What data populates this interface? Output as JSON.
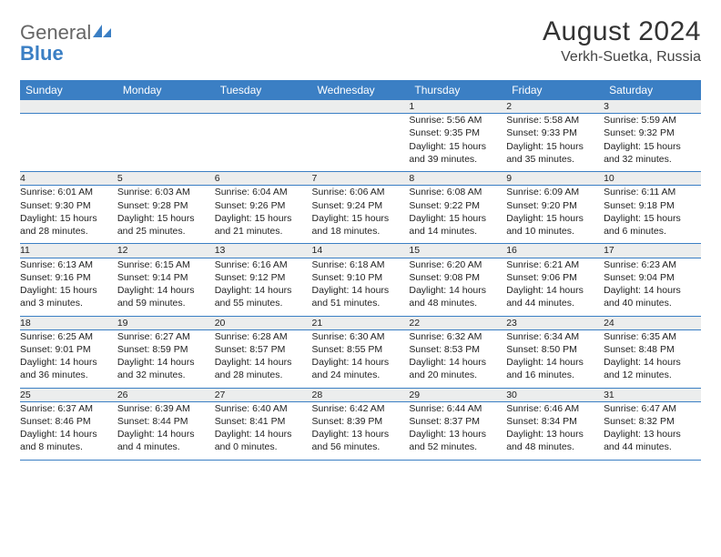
{
  "brand": {
    "part1": "General",
    "part2": "Blue"
  },
  "title": "August 2024",
  "location": "Verkh-Suetka, Russia",
  "colors": {
    "header_bg": "#3b7fc4",
    "header_fg": "#ffffff",
    "daynum_bg": "#eceded",
    "rule": "#3b7fc4",
    "text": "#222222",
    "brand_gray": "#666666",
    "brand_blue": "#3b7fc4"
  },
  "weekdays": [
    "Sunday",
    "Monday",
    "Tuesday",
    "Wednesday",
    "Thursday",
    "Friday",
    "Saturday"
  ],
  "weeks": [
    {
      "nums": [
        "",
        "",
        "",
        "",
        "1",
        "2",
        "3"
      ],
      "cells": [
        null,
        null,
        null,
        null,
        {
          "sunrise": "Sunrise: 5:56 AM",
          "sunset": "Sunset: 9:35 PM",
          "day1": "Daylight: 15 hours",
          "day2": "and 39 minutes."
        },
        {
          "sunrise": "Sunrise: 5:58 AM",
          "sunset": "Sunset: 9:33 PM",
          "day1": "Daylight: 15 hours",
          "day2": "and 35 minutes."
        },
        {
          "sunrise": "Sunrise: 5:59 AM",
          "sunset": "Sunset: 9:32 PM",
          "day1": "Daylight: 15 hours",
          "day2": "and 32 minutes."
        }
      ]
    },
    {
      "nums": [
        "4",
        "5",
        "6",
        "7",
        "8",
        "9",
        "10"
      ],
      "cells": [
        {
          "sunrise": "Sunrise: 6:01 AM",
          "sunset": "Sunset: 9:30 PM",
          "day1": "Daylight: 15 hours",
          "day2": "and 28 minutes."
        },
        {
          "sunrise": "Sunrise: 6:03 AM",
          "sunset": "Sunset: 9:28 PM",
          "day1": "Daylight: 15 hours",
          "day2": "and 25 minutes."
        },
        {
          "sunrise": "Sunrise: 6:04 AM",
          "sunset": "Sunset: 9:26 PM",
          "day1": "Daylight: 15 hours",
          "day2": "and 21 minutes."
        },
        {
          "sunrise": "Sunrise: 6:06 AM",
          "sunset": "Sunset: 9:24 PM",
          "day1": "Daylight: 15 hours",
          "day2": "and 18 minutes."
        },
        {
          "sunrise": "Sunrise: 6:08 AM",
          "sunset": "Sunset: 9:22 PM",
          "day1": "Daylight: 15 hours",
          "day2": "and 14 minutes."
        },
        {
          "sunrise": "Sunrise: 6:09 AM",
          "sunset": "Sunset: 9:20 PM",
          "day1": "Daylight: 15 hours",
          "day2": "and 10 minutes."
        },
        {
          "sunrise": "Sunrise: 6:11 AM",
          "sunset": "Sunset: 9:18 PM",
          "day1": "Daylight: 15 hours",
          "day2": "and 6 minutes."
        }
      ]
    },
    {
      "nums": [
        "11",
        "12",
        "13",
        "14",
        "15",
        "16",
        "17"
      ],
      "cells": [
        {
          "sunrise": "Sunrise: 6:13 AM",
          "sunset": "Sunset: 9:16 PM",
          "day1": "Daylight: 15 hours",
          "day2": "and 3 minutes."
        },
        {
          "sunrise": "Sunrise: 6:15 AM",
          "sunset": "Sunset: 9:14 PM",
          "day1": "Daylight: 14 hours",
          "day2": "and 59 minutes."
        },
        {
          "sunrise": "Sunrise: 6:16 AM",
          "sunset": "Sunset: 9:12 PM",
          "day1": "Daylight: 14 hours",
          "day2": "and 55 minutes."
        },
        {
          "sunrise": "Sunrise: 6:18 AM",
          "sunset": "Sunset: 9:10 PM",
          "day1": "Daylight: 14 hours",
          "day2": "and 51 minutes."
        },
        {
          "sunrise": "Sunrise: 6:20 AM",
          "sunset": "Sunset: 9:08 PM",
          "day1": "Daylight: 14 hours",
          "day2": "and 48 minutes."
        },
        {
          "sunrise": "Sunrise: 6:21 AM",
          "sunset": "Sunset: 9:06 PM",
          "day1": "Daylight: 14 hours",
          "day2": "and 44 minutes."
        },
        {
          "sunrise": "Sunrise: 6:23 AM",
          "sunset": "Sunset: 9:04 PM",
          "day1": "Daylight: 14 hours",
          "day2": "and 40 minutes."
        }
      ]
    },
    {
      "nums": [
        "18",
        "19",
        "20",
        "21",
        "22",
        "23",
        "24"
      ],
      "cells": [
        {
          "sunrise": "Sunrise: 6:25 AM",
          "sunset": "Sunset: 9:01 PM",
          "day1": "Daylight: 14 hours",
          "day2": "and 36 minutes."
        },
        {
          "sunrise": "Sunrise: 6:27 AM",
          "sunset": "Sunset: 8:59 PM",
          "day1": "Daylight: 14 hours",
          "day2": "and 32 minutes."
        },
        {
          "sunrise": "Sunrise: 6:28 AM",
          "sunset": "Sunset: 8:57 PM",
          "day1": "Daylight: 14 hours",
          "day2": "and 28 minutes."
        },
        {
          "sunrise": "Sunrise: 6:30 AM",
          "sunset": "Sunset: 8:55 PM",
          "day1": "Daylight: 14 hours",
          "day2": "and 24 minutes."
        },
        {
          "sunrise": "Sunrise: 6:32 AM",
          "sunset": "Sunset: 8:53 PM",
          "day1": "Daylight: 14 hours",
          "day2": "and 20 minutes."
        },
        {
          "sunrise": "Sunrise: 6:34 AM",
          "sunset": "Sunset: 8:50 PM",
          "day1": "Daylight: 14 hours",
          "day2": "and 16 minutes."
        },
        {
          "sunrise": "Sunrise: 6:35 AM",
          "sunset": "Sunset: 8:48 PM",
          "day1": "Daylight: 14 hours",
          "day2": "and 12 minutes."
        }
      ]
    },
    {
      "nums": [
        "25",
        "26",
        "27",
        "28",
        "29",
        "30",
        "31"
      ],
      "cells": [
        {
          "sunrise": "Sunrise: 6:37 AM",
          "sunset": "Sunset: 8:46 PM",
          "day1": "Daylight: 14 hours",
          "day2": "and 8 minutes."
        },
        {
          "sunrise": "Sunrise: 6:39 AM",
          "sunset": "Sunset: 8:44 PM",
          "day1": "Daylight: 14 hours",
          "day2": "and 4 minutes."
        },
        {
          "sunrise": "Sunrise: 6:40 AM",
          "sunset": "Sunset: 8:41 PM",
          "day1": "Daylight: 14 hours",
          "day2": "and 0 minutes."
        },
        {
          "sunrise": "Sunrise: 6:42 AM",
          "sunset": "Sunset: 8:39 PM",
          "day1": "Daylight: 13 hours",
          "day2": "and 56 minutes."
        },
        {
          "sunrise": "Sunrise: 6:44 AM",
          "sunset": "Sunset: 8:37 PM",
          "day1": "Daylight: 13 hours",
          "day2": "and 52 minutes."
        },
        {
          "sunrise": "Sunrise: 6:46 AM",
          "sunset": "Sunset: 8:34 PM",
          "day1": "Daylight: 13 hours",
          "day2": "and 48 minutes."
        },
        {
          "sunrise": "Sunrise: 6:47 AM",
          "sunset": "Sunset: 8:32 PM",
          "day1": "Daylight: 13 hours",
          "day2": "and 44 minutes."
        }
      ]
    }
  ]
}
